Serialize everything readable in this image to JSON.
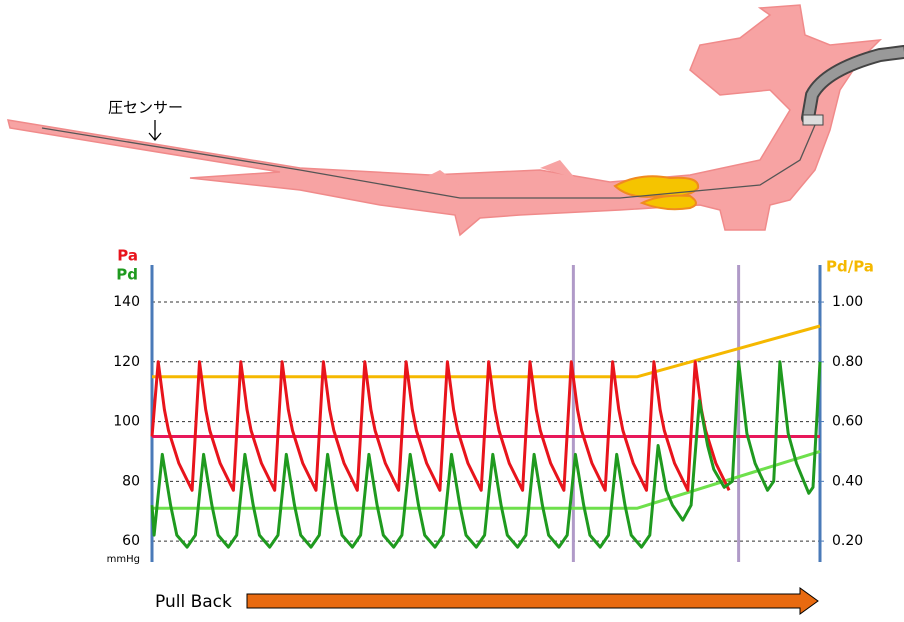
{
  "illustration": {
    "sensor_label": "圧センサー"
  },
  "pullback": {
    "label": "Pull Back"
  },
  "chart_data": {
    "type": "line",
    "xlim": [
      0,
      16.17
    ],
    "ylim": [
      53,
      152.4
    ],
    "yticks": [
      60,
      80,
      100,
      120,
      140
    ],
    "y_unit": "mmHg",
    "y2lim": [
      0.13,
      1.124
    ],
    "y2ticks": [
      {
        "value": 0.2,
        "label": "0.20"
      },
      {
        "value": 0.4,
        "label": "0.40"
      },
      {
        "value": 0.6,
        "label": "0.60"
      },
      {
        "value": 0.8,
        "label": "0.80"
      },
      {
        "value": 1.0,
        "label": "1.00"
      }
    ],
    "grid": true,
    "markers_x": [
      10.2,
      14.2
    ],
    "series": [
      {
        "name": "Pa",
        "color": "#e8141c",
        "x": [
          0,
          0.15,
          0.3,
          0.4,
          0.65,
          0.97,
          1.15,
          1.3,
          1.4,
          1.65,
          1.97,
          2.15,
          2.3,
          2.4,
          2.65,
          2.97,
          3.15,
          3.3,
          3.4,
          3.65,
          3.97,
          4.15,
          4.3,
          4.4,
          4.65,
          4.97,
          5.15,
          5.3,
          5.4,
          5.65,
          5.97,
          6.15,
          6.3,
          6.4,
          6.65,
          6.97,
          7.15,
          7.3,
          7.4,
          7.65,
          7.97,
          8.15,
          8.3,
          8.4,
          8.65,
          8.97,
          9.15,
          9.3,
          9.4,
          9.65,
          9.97,
          10.15,
          10.3,
          10.4,
          10.65,
          10.97,
          11.15,
          11.3,
          11.4,
          11.65,
          11.97,
          12.15,
          12.3,
          12.4,
          12.65,
          12.97,
          13.15,
          13.3,
          13.4,
          13.65,
          13.97
        ],
        "values": [
          95,
          120,
          104,
          97,
          86,
          77,
          120,
          104,
          97,
          86,
          77,
          120,
          104,
          97,
          86,
          77,
          120,
          104,
          97,
          86,
          77,
          120,
          104,
          97,
          86,
          77,
          120,
          104,
          97,
          86,
          77,
          120,
          104,
          97,
          86,
          77,
          120,
          104,
          97,
          86,
          77,
          120,
          104,
          97,
          86,
          77,
          120,
          104,
          97,
          86,
          77,
          120,
          104,
          97,
          86,
          77,
          120,
          104,
          97,
          86,
          77,
          120,
          104,
          97,
          86,
          77,
          120,
          104,
          97,
          86,
          77
        ]
      },
      {
        "name": "Pd",
        "color": "#1f9a1f",
        "x": [
          0,
          0.05,
          0.25,
          0.45,
          0.6,
          0.85,
          1.05,
          1.25,
          1.45,
          1.6,
          1.85,
          2.05,
          2.25,
          2.45,
          2.6,
          2.85,
          3.05,
          3.25,
          3.45,
          3.6,
          3.85,
          4.05,
          4.25,
          4.45,
          4.6,
          4.85,
          5.05,
          5.25,
          5.45,
          5.6,
          5.85,
          6.05,
          6.25,
          6.45,
          6.6,
          6.85,
          7.05,
          7.25,
          7.45,
          7.6,
          7.85,
          8.05,
          8.25,
          8.45,
          8.6,
          8.85,
          9.05,
          9.25,
          9.45,
          9.6,
          9.85,
          10.05,
          10.25,
          10.45,
          10.6,
          10.85,
          11.05,
          11.25,
          11.45,
          11.6,
          11.85,
          12.05,
          12.25,
          12.45,
          12.6,
          12.85,
          13.05,
          13.25,
          13.45,
          13.6,
          13.85,
          14.05,
          14.2,
          14.4,
          14.6,
          14.9,
          15.05,
          15.2,
          15.4,
          15.6,
          15.9,
          16.0,
          16.17
        ],
        "values": [
          72,
          62,
          89,
          72,
          62,
          58,
          62,
          89,
          72,
          62,
          58,
          62,
          89,
          72,
          62,
          58,
          62,
          89,
          72,
          62,
          58,
          62,
          89,
          72,
          62,
          58,
          62,
          89,
          72,
          62,
          58,
          62,
          89,
          72,
          62,
          58,
          62,
          89,
          72,
          62,
          58,
          62,
          89,
          72,
          62,
          58,
          62,
          89,
          72,
          62,
          58,
          62,
          89,
          72,
          62,
          58,
          62,
          89,
          72,
          62,
          58,
          62,
          92,
          77,
          72,
          67,
          72,
          107,
          92,
          84,
          78,
          80,
          120,
          96,
          86,
          77,
          80,
          120,
          96,
          86,
          76,
          78,
          120
        ]
      },
      {
        "color": "#e8185a",
        "x": [
          0,
          16.17
        ],
        "values": [
          95,
          95
        ]
      },
      {
        "color": "#6ee04c",
        "x": [
          0,
          11.75,
          16.17
        ],
        "values": [
          71,
          71,
          90
        ]
      },
      {
        "name": "Pd/Pa",
        "color": "#f5b800",
        "axis": "y2",
        "x": [
          0,
          11.75,
          16.17
        ],
        "values": [
          0.75,
          0.75,
          0.92
        ]
      }
    ]
  }
}
